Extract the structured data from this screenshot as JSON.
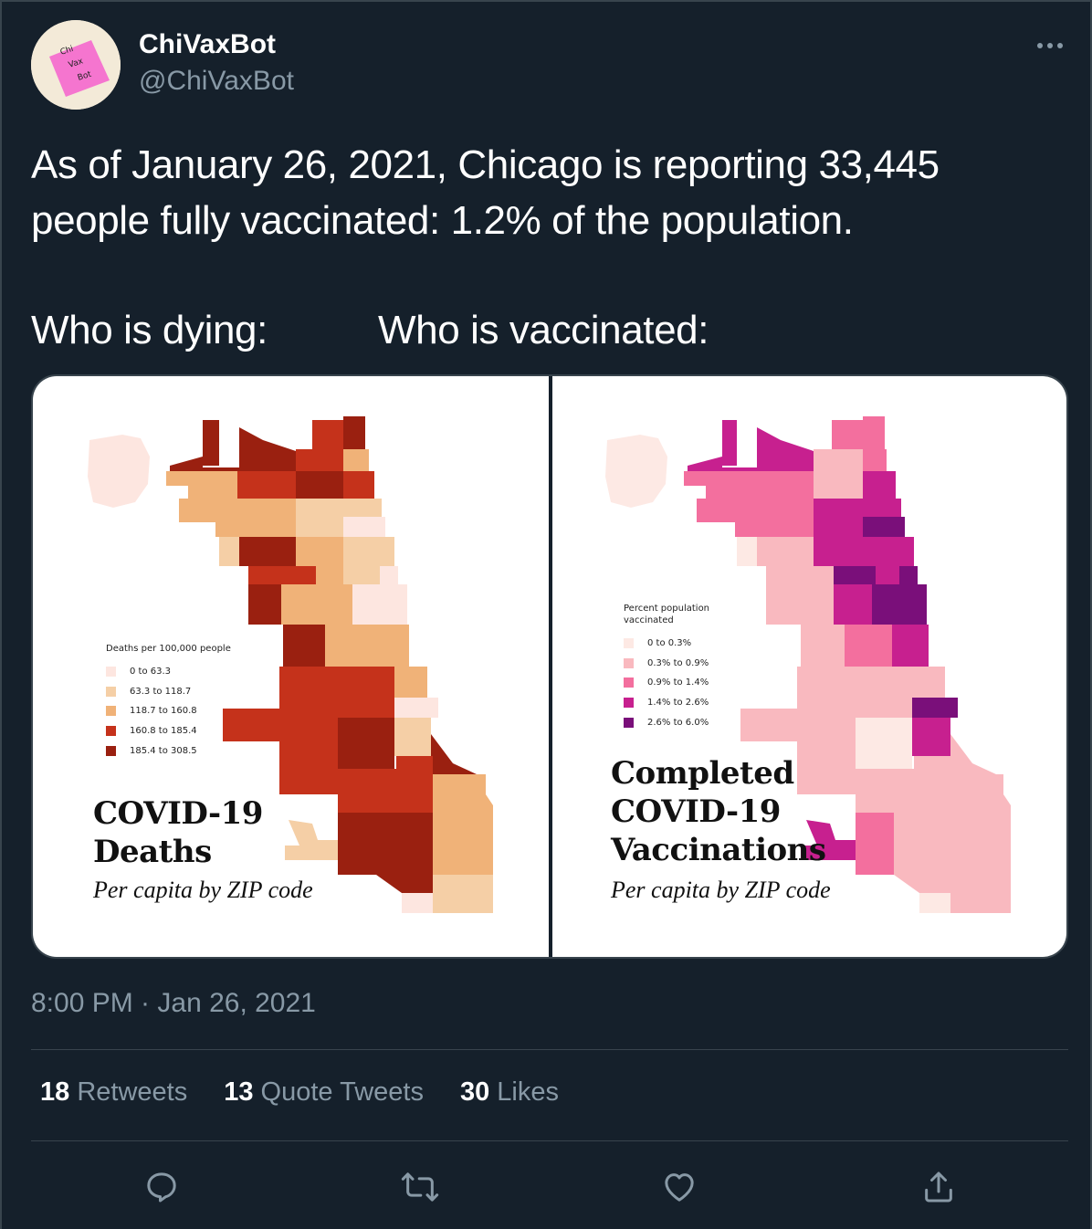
{
  "user": {
    "name": "ChiVaxBot",
    "handle": "@ChiVaxBot",
    "avatar_text": [
      "Chi",
      "Vax",
      "Bot"
    ]
  },
  "tweet": {
    "line1": "As of January 26, 2021, Chicago is reporting 33,445",
    "line2": "people fully vaccinated: 1.2% of the population.",
    "label_dying": "Who is dying:",
    "label_vaccinated": "Who is vaccinated:"
  },
  "deaths_map": {
    "legend_title": "Deaths per 100,000 people",
    "legend": [
      {
        "label": "0 to 63.3",
        "color": "#fde6e0"
      },
      {
        "label": "63.3 to 118.7",
        "color": "#f5cfa6"
      },
      {
        "label": "118.7 to 160.8",
        "color": "#f0b278"
      },
      {
        "label": "160.8 to 185.4",
        "color": "#c5321b"
      },
      {
        "label": "185.4 to 308.5",
        "color": "#9a2010"
      }
    ],
    "title_line1": "COVID-19",
    "title_line2": "Deaths",
    "subtitle": "Per capita by ZIP code"
  },
  "vax_map": {
    "legend_title_line1": "Percent population",
    "legend_title_line2": "vaccinated",
    "legend": [
      {
        "label": "0 to 0.3%",
        "color": "#fde9e4"
      },
      {
        "label": "0.3% to 0.9%",
        "color": "#f9b9bf"
      },
      {
        "label": "0.9% to 1.4%",
        "color": "#f36f9e"
      },
      {
        "label": "1.4% to 2.6%",
        "color": "#c7208f"
      },
      {
        "label": "2.6% to 6.0%",
        "color": "#7a0f7a"
      }
    ],
    "title_line1": "Completed",
    "title_line2": "COVID-19",
    "title_line3": "Vaccinations",
    "subtitle": "Per capita by ZIP code"
  },
  "timestamp": "8:00 PM · Jan 26, 2021",
  "stats": {
    "retweets_count": "18",
    "retweets_label": "Retweets",
    "quotes_count": "13",
    "quotes_label": "Quote Tweets",
    "likes_count": "30",
    "likes_label": "Likes"
  },
  "icons": [
    "reply-icon",
    "retweet-icon",
    "like-icon",
    "share-icon",
    "more-icon"
  ]
}
